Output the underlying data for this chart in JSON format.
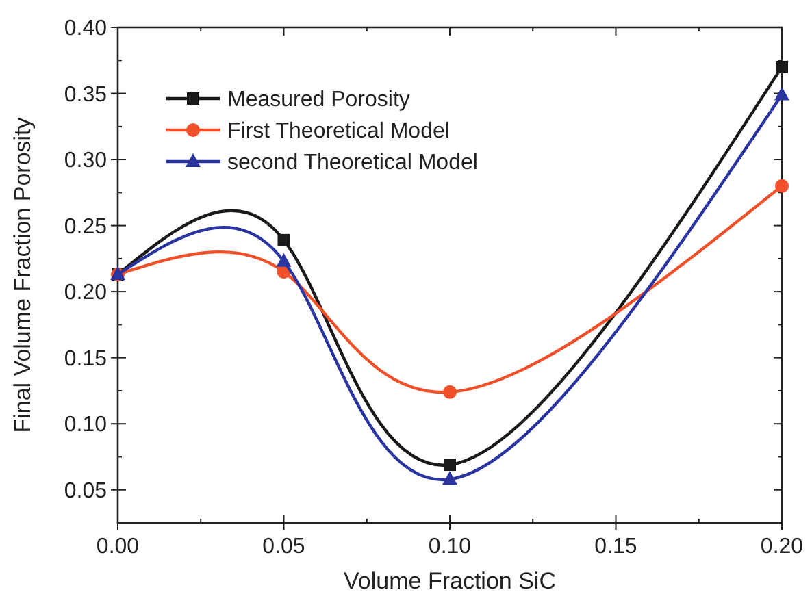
{
  "chart_data": {
    "type": "line",
    "xlabel": "Volume Fraction SiC",
    "ylabel": "Final Volume Fraction Porosity",
    "x": [
      0,
      0.05,
      0.1,
      0.2
    ],
    "series": [
      {
        "name": "Measured Porosity",
        "color": "#1a1a1a",
        "marker": "square",
        "values": [
          0.213,
          0.239,
          0.069,
          0.37
        ]
      },
      {
        "name": "First Theoretical Model",
        "color": "#f0502a",
        "marker": "circle",
        "values": [
          0.213,
          0.215,
          0.124,
          0.28
        ]
      },
      {
        "name": "second Theoretical Model",
        "color": "#2a35a0",
        "marker": "triangle",
        "values": [
          0.213,
          0.223,
          0.058,
          0.349
        ]
      }
    ],
    "xlim": [
      0,
      0.2
    ],
    "xticks": [
      {
        "value": 0,
        "label": "0.00"
      },
      0.05,
      {
        "value": 0.1,
        "label": "0.10"
      },
      0.15,
      {
        "value": 0.2,
        "label": "0.20"
      }
    ],
    "ylim": [
      0.025,
      0.4
    ],
    "yticks": [
      0.05,
      {
        "value": 0.1,
        "label": "0.10"
      },
      0.15,
      {
        "value": 0.2,
        "label": "0.20"
      },
      0.25,
      {
        "value": 0.3,
        "label": "0.30"
      },
      0.35,
      {
        "value": 0.4,
        "label": "0.40"
      }
    ],
    "legend": "top left",
    "grid": false
  }
}
